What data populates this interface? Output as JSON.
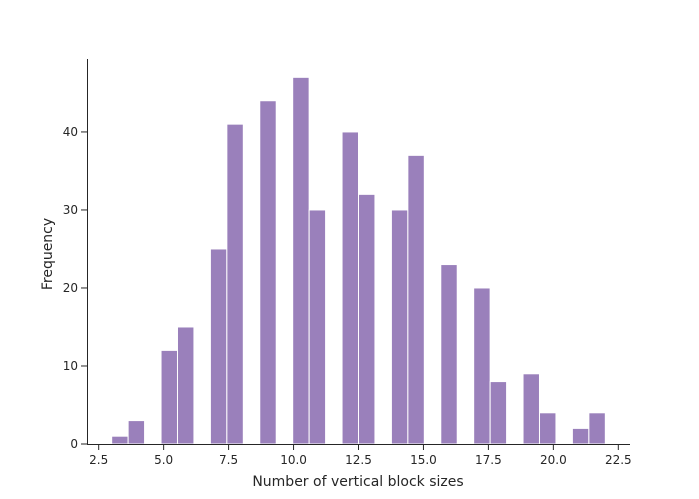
{
  "chart_data": {
    "type": "bar",
    "title": "",
    "xlabel": "Number of vertical block sizes",
    "ylabel": "Frequency",
    "bar_color": "#9a80bb",
    "grid": false,
    "xlim": [
      2.05,
      22.95
    ],
    "ylim": [
      0,
      49.35
    ],
    "xticks": [
      2.5,
      5.0,
      7.5,
      10.0,
      12.5,
      15.0,
      17.5,
      20.0,
      22.5
    ],
    "xtick_labels": [
      "2.5",
      "5.0",
      "7.5",
      "10.0",
      "12.5",
      "15.0",
      "17.5",
      "20.0",
      "22.5"
    ],
    "yticks": [
      0,
      10,
      20,
      30,
      40
    ],
    "ytick_labels": [
      "0",
      "10",
      "20",
      "30",
      "40"
    ],
    "bin_width": 0.633,
    "bins": [
      {
        "start": 3.0,
        "value": 1
      },
      {
        "start": 3.633,
        "value": 3
      },
      {
        "start": 4.267,
        "value": 0
      },
      {
        "start": 4.9,
        "value": 12
      },
      {
        "start": 5.533,
        "value": 15
      },
      {
        "start": 6.167,
        "value": 0
      },
      {
        "start": 6.8,
        "value": 25
      },
      {
        "start": 7.433,
        "value": 41
      },
      {
        "start": 8.067,
        "value": 0
      },
      {
        "start": 8.7,
        "value": 44
      },
      {
        "start": 9.333,
        "value": 0
      },
      {
        "start": 9.967,
        "value": 47
      },
      {
        "start": 10.6,
        "value": 30
      },
      {
        "start": 11.233,
        "value": 0
      },
      {
        "start": 11.867,
        "value": 40
      },
      {
        "start": 12.5,
        "value": 32
      },
      {
        "start": 13.133,
        "value": 0
      },
      {
        "start": 13.767,
        "value": 30
      },
      {
        "start": 14.4,
        "value": 37
      },
      {
        "start": 15.033,
        "value": 0
      },
      {
        "start": 15.667,
        "value": 23
      },
      {
        "start": 16.3,
        "value": 0
      },
      {
        "start": 16.933,
        "value": 20
      },
      {
        "start": 17.567,
        "value": 8
      },
      {
        "start": 18.2,
        "value": 0
      },
      {
        "start": 18.833,
        "value": 9
      },
      {
        "start": 19.467,
        "value": 4
      },
      {
        "start": 20.1,
        "value": 0
      },
      {
        "start": 20.733,
        "value": 2
      },
      {
        "start": 21.367,
        "value": 4
      }
    ]
  }
}
